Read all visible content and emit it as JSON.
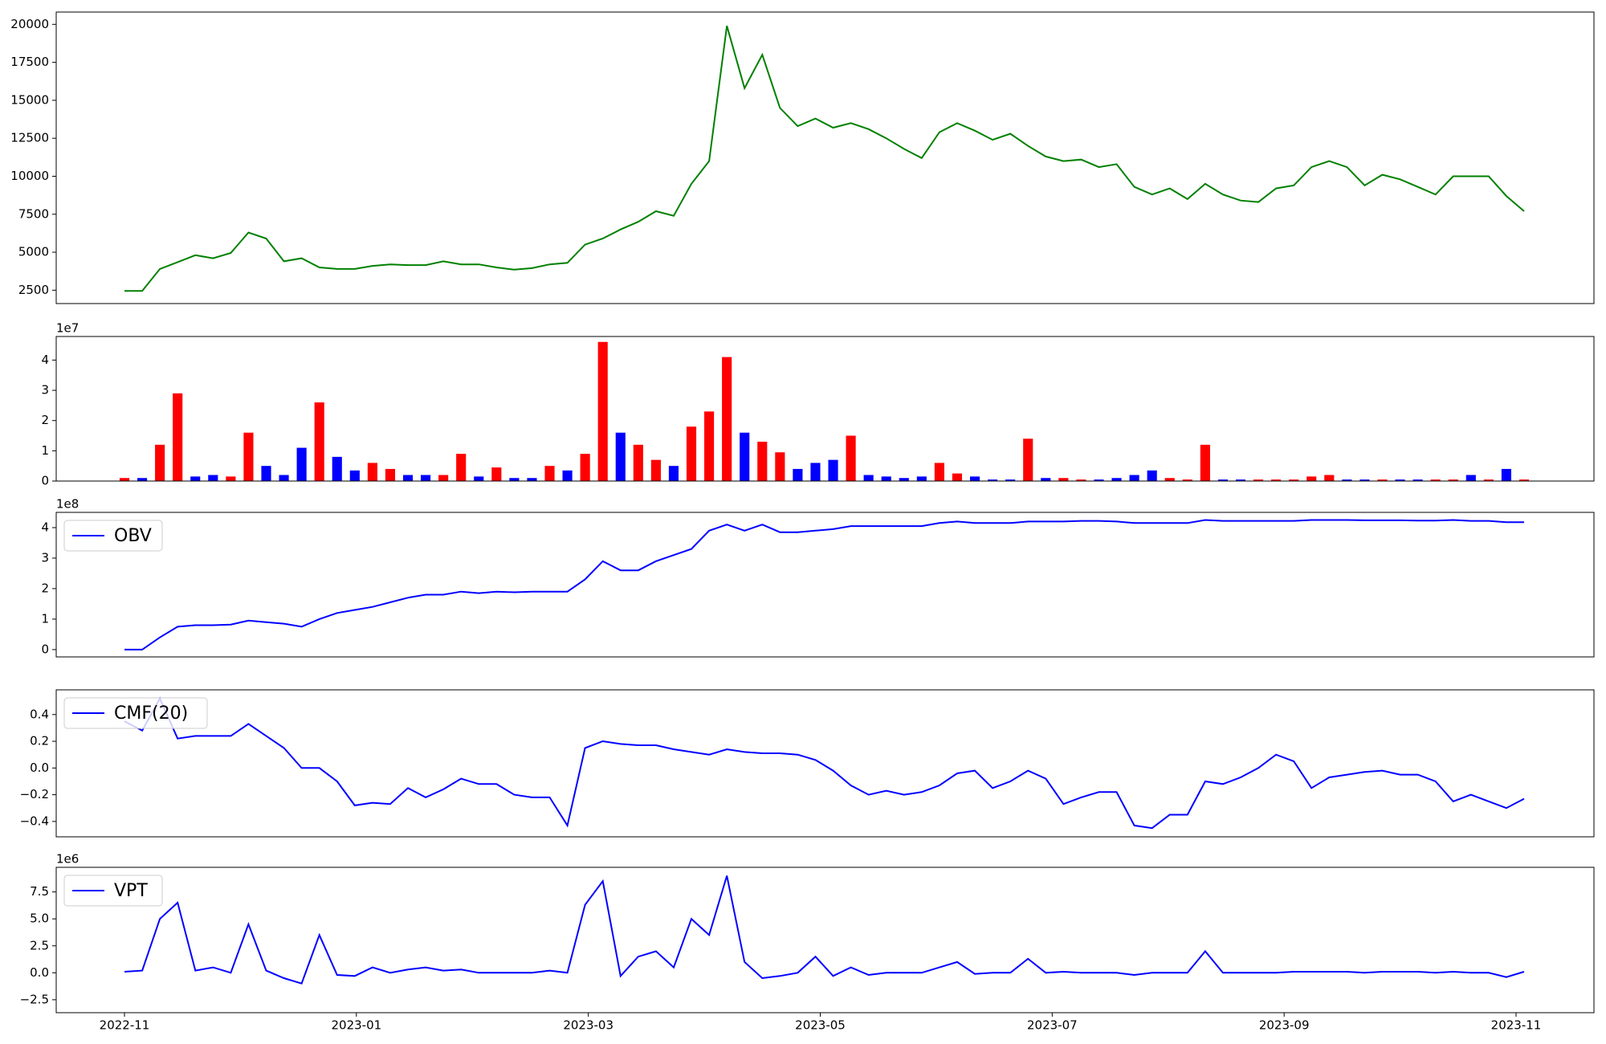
{
  "chart_data": [
    {
      "type": "line",
      "color": "#008000",
      "values": [
        2450,
        2450,
        3900,
        4350,
        4800,
        4600,
        4950,
        6300,
        5900,
        4400,
        4600,
        4000,
        3900,
        3900,
        4100,
        4200,
        4150,
        4150,
        4400,
        4200,
        4200,
        4000,
        3850,
        3950,
        4200,
        4300,
        5500,
        5900,
        6500,
        7000,
        7700,
        7400,
        9500,
        11000,
        19900,
        15800,
        18000,
        14500,
        13300,
        13800,
        13200,
        13500,
        13100,
        12500,
        11800,
        11200,
        12900,
        13500,
        13000,
        12400,
        12800,
        12000,
        11300,
        11000,
        11100,
        10600,
        10800,
        9300,
        8800,
        9200,
        8500,
        9500,
        8800,
        8400,
        8300,
        9200,
        9400,
        10600,
        11000,
        10600,
        9400,
        10100,
        9800,
        9300,
        8800,
        10000,
        10000,
        10000,
        8700,
        7700
      ],
      "ylim": [
        1620,
        20810
      ],
      "yticks": [
        2500,
        5000,
        7500,
        10000,
        12500,
        15000,
        17500,
        20000
      ]
    },
    {
      "type": "bar",
      "offset_label": "1e7",
      "values": [
        0.1,
        0.1,
        1.2,
        2.9,
        0.15,
        0.2,
        0.15,
        1.6,
        0.5,
        0.2,
        1.1,
        2.6,
        0.8,
        0.35,
        0.6,
        0.4,
        0.2,
        0.2,
        0.2,
        0.9,
        0.15,
        0.45,
        0.1,
        0.1,
        0.5,
        0.35,
        0.9,
        4.6,
        1.6,
        1.2,
        0.7,
        0.5,
        1.8,
        2.3,
        4.1,
        1.6,
        1.3,
        0.95,
        0.4,
        0.6,
        0.7,
        1.5,
        0.2,
        0.15,
        0.1,
        0.15,
        0.6,
        0.25,
        0.15,
        0.05,
        0.05,
        1.4,
        0.1,
        0.1,
        0.05,
        0.05,
        0.1,
        0.2,
        0.35,
        0.1,
        0.05,
        1.2,
        0.05,
        0.05,
        0.05,
        0.05,
        0.05,
        0.15,
        0.2,
        0.05,
        0.05,
        0.05,
        0.05,
        0.05,
        0.05,
        0.05,
        0.2,
        0.05,
        0.4,
        0.05
      ],
      "colors": [
        "#ff0000",
        "#0000ff",
        "#ff0000",
        "#ff0000",
        "#0000ff",
        "#0000ff",
        "#ff0000",
        "#ff0000",
        "#0000ff",
        "#0000ff",
        "#0000ff",
        "#ff0000",
        "#0000ff",
        "#0000ff",
        "#ff0000",
        "#ff0000",
        "#0000ff",
        "#0000ff",
        "#ff0000",
        "#ff0000",
        "#0000ff",
        "#ff0000",
        "#0000ff",
        "#0000ff",
        "#ff0000",
        "#0000ff",
        "#ff0000",
        "#ff0000",
        "#0000ff",
        "#ff0000",
        "#ff0000",
        "#0000ff",
        "#ff0000",
        "#ff0000",
        "#ff0000",
        "#0000ff",
        "#ff0000",
        "#ff0000",
        "#0000ff",
        "#0000ff",
        "#0000ff",
        "#ff0000",
        "#0000ff",
        "#0000ff",
        "#0000ff",
        "#0000ff",
        "#ff0000",
        "#ff0000",
        "#0000ff",
        "#0000ff",
        "#0000ff",
        "#ff0000",
        "#0000ff",
        "#ff0000",
        "#ff0000",
        "#0000ff",
        "#0000ff",
        "#0000ff",
        "#0000ff",
        "#ff0000",
        "#ff0000",
        "#ff0000",
        "#0000ff",
        "#0000ff",
        "#ff0000",
        "#ff0000",
        "#ff0000",
        "#ff0000",
        "#ff0000",
        "#0000ff",
        "#0000ff",
        "#ff0000",
        "#0000ff",
        "#0000ff",
        "#ff0000",
        "#ff0000",
        "#0000ff",
        "#ff0000",
        "#0000ff",
        "#ff0000"
      ],
      "ylim": [
        0,
        4.78
      ],
      "yticks": [
        0,
        1,
        2,
        3,
        4
      ]
    },
    {
      "type": "line",
      "offset_label": "1e8",
      "legend": "upper left",
      "series": [
        {
          "name": "OBV",
          "color": "#0000ff",
          "values": [
            0,
            0,
            0.4,
            0.75,
            0.8,
            0.8,
            0.82,
            0.95,
            0.9,
            0.85,
            0.75,
            1.0,
            1.2,
            1.3,
            1.4,
            1.55,
            1.7,
            1.8,
            1.8,
            1.9,
            1.85,
            1.9,
            1.88,
            1.9,
            1.9,
            1.9,
            2.3,
            2.9,
            2.6,
            2.6,
            2.9,
            3.1,
            3.3,
            3.9,
            4.1,
            3.9,
            4.1,
            3.85,
            3.85,
            3.9,
            3.95,
            4.05,
            4.05,
            4.05,
            4.05,
            4.05,
            4.15,
            4.2,
            4.15,
            4.15,
            4.15,
            4.2,
            4.2,
            4.2,
            4.22,
            4.22,
            4.2,
            4.15,
            4.15,
            4.15,
            4.15,
            4.25,
            4.22,
            4.22,
            4.22,
            4.22,
            4.22,
            4.25,
            4.25,
            4.25,
            4.24,
            4.24,
            4.24,
            4.23,
            4.23,
            4.25,
            4.22,
            4.22,
            4.18,
            4.18
          ]
        }
      ],
      "ylim": [
        -0.24,
        4.5
      ],
      "yticks": [
        0,
        1,
        2,
        3,
        4
      ]
    },
    {
      "type": "line",
      "legend": "upper left",
      "series": [
        {
          "name": "CMF(20)",
          "color": "#0000ff",
          "values": [
            0.35,
            0.28,
            0.52,
            0.22,
            0.24,
            0.24,
            0.24,
            0.33,
            0.24,
            0.15,
            0.0,
            0.0,
            -0.1,
            -0.28,
            -0.26,
            -0.27,
            -0.15,
            -0.22,
            -0.16,
            -0.08,
            -0.12,
            -0.12,
            -0.2,
            -0.22,
            -0.22,
            -0.43,
            0.15,
            0.2,
            0.18,
            0.17,
            0.17,
            0.14,
            0.12,
            0.1,
            0.14,
            0.12,
            0.11,
            0.11,
            0.1,
            0.06,
            -0.02,
            -0.13,
            -0.2,
            -0.17,
            -0.2,
            -0.18,
            -0.13,
            -0.04,
            -0.02,
            -0.15,
            -0.1,
            -0.02,
            -0.08,
            -0.27,
            -0.22,
            -0.18,
            -0.18,
            -0.43,
            -0.45,
            -0.35,
            -0.35,
            -0.1,
            -0.12,
            -0.07,
            0.0,
            0.1,
            0.05,
            -0.15,
            -0.07,
            -0.05,
            -0.03,
            -0.02,
            -0.05,
            -0.05,
            -0.1,
            -0.25,
            -0.2,
            -0.25,
            -0.3,
            -0.23
          ]
        }
      ],
      "ylim": [
        -0.515,
        0.585
      ],
      "yticks": [
        {
          "value": -0.4,
          "label": "−0.4"
        },
        {
          "value": -0.2,
          "label": "−0.2"
        },
        {
          "value": 0,
          "label": "0.0"
        },
        0.2,
        0.4
      ]
    },
    {
      "type": "line",
      "offset_label": "1e6",
      "legend": "upper left",
      "series": [
        {
          "name": "VPT",
          "color": "#0000ff",
          "values": [
            0.1,
            0.2,
            5.0,
            6.5,
            0.2,
            0.5,
            0.0,
            4.5,
            0.2,
            -0.5,
            -1.0,
            3.5,
            -0.2,
            -0.3,
            0.5,
            0.0,
            0.3,
            0.5,
            0.2,
            0.3,
            0.0,
            0.0,
            0.0,
            0.0,
            0.2,
            0.0,
            6.3,
            8.5,
            -0.3,
            1.5,
            2.0,
            0.5,
            5.0,
            3.5,
            9.0,
            1.0,
            -0.5,
            -0.3,
            0.0,
            1.5,
            -0.3,
            0.5,
            -0.2,
            0.0,
            0.0,
            0.0,
            0.5,
            1.0,
            -0.1,
            0.0,
            0.0,
            1.3,
            0.0,
            0.1,
            0.0,
            0.0,
            0.0,
            -0.2,
            0.0,
            0.0,
            0.0,
            2.0,
            0.0,
            0.0,
            0.0,
            0.0,
            0.1,
            0.1,
            0.1,
            0.1,
            0.0,
            0.1,
            0.1,
            0.1,
            0.0,
            0.1,
            0.0,
            0.0,
            -0.4,
            0.1
          ]
        }
      ],
      "ylim": [
        -3.7,
        9.78
      ],
      "yticks": [
        {
          "value": -2.5,
          "label": "−2.5"
        },
        {
          "value": 0,
          "label": "0.0"
        },
        2.5,
        {
          "value": 5,
          "label": "5.0"
        },
        7.5
      ],
      "xticks": [
        "2022-11",
        "2023-01",
        "2023-03",
        "2023-05",
        "2023-07",
        "2023-09",
        "2023-11"
      ]
    }
  ]
}
